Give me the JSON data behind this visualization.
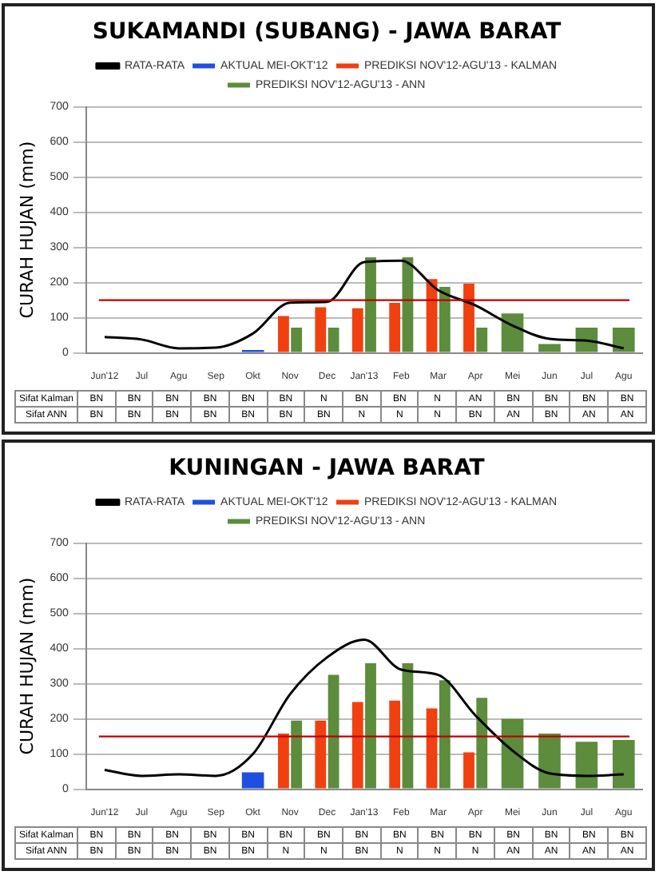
{
  "chart_data": [
    {
      "type": "bar",
      "title": "SUKAMANDI (SUBANG) - JAWA BARAT",
      "ylabel": "CURAH HUJAN (mm)",
      "categories": [
        "Jun'12",
        "Jul",
        "Agu",
        "Sep",
        "Okt",
        "Nov",
        "Dec",
        "Jan'13",
        "Feb",
        "Mar",
        "Apr",
        "Mei",
        "Jun",
        "Jul",
        "Agu"
      ],
      "series": [
        {
          "name": "AKTUAL MEI-OKT'12",
          "color": "#1f4fe0",
          "values": [
            null,
            null,
            null,
            null,
            8,
            null,
            null,
            null,
            null,
            null,
            null,
            null,
            null,
            null,
            null
          ]
        },
        {
          "name": "PREDIKSI NOV'12-AGU'13 - KALMAN",
          "color": "#f04010",
          "values": [
            null,
            null,
            null,
            null,
            null,
            105,
            130,
            127,
            142,
            210,
            197,
            null,
            null,
            null,
            null
          ]
        },
        {
          "name": "PREDIKSI NOV'12-AGU'13 - ANN",
          "color": "#5c8c3c",
          "values": [
            null,
            null,
            null,
            null,
            null,
            72,
            72,
            272,
            272,
            188,
            72,
            112,
            25,
            72,
            72
          ]
        },
        {
          "name": "RATA-RATA",
          "type": "line",
          "color": "#000000",
          "values": [
            45,
            38,
            13,
            15,
            55,
            143,
            145,
            258,
            262,
            178,
            135,
            78,
            40,
            35,
            13
          ]
        }
      ],
      "ylim": [
        0,
        700
      ],
      "yticks": [
        0,
        100,
        200,
        300,
        400,
        500,
        600,
        700
      ],
      "grid": "y",
      "legend": "top",
      "marker": "none",
      "line_style": "solid",
      "ref_lines": [
        {
          "axis": "y",
          "value": 150,
          "color": "#c00000"
        }
      ],
      "annotations": [
        "Sifat Kalman",
        "BN",
        "BN",
        "BN",
        "BN",
        "BN",
        "BN",
        "N",
        "BN",
        "BN",
        "N",
        "AN",
        "BN",
        "BN",
        "BN",
        "BN",
        "Sifat ANN",
        "BN",
        "BN",
        "BN",
        "BN",
        "BN",
        "BN",
        "BN",
        "N",
        "N",
        "N",
        "BN",
        "AN",
        "BN",
        "AN",
        "AN"
      ]
    },
    {
      "type": "bar",
      "title": "KUNINGAN - JAWA BARAT",
      "ylabel": "CURAH HUJAN (mm)",
      "categories": [
        "Jun'12",
        "Jul",
        "Agu",
        "Sep",
        "Okt",
        "Nov",
        "Dec",
        "Jan'13",
        "Feb",
        "Mar",
        "Apr",
        "Mei",
        "Jun",
        "Jul",
        "Agu"
      ],
      "series": [
        {
          "name": "AKTUAL MEI-OKT'12",
          "color": "#1f4fe0",
          "values": [
            null,
            null,
            null,
            null,
            48,
            null,
            null,
            null,
            null,
            null,
            null,
            null,
            null,
            null,
            null
          ]
        },
        {
          "name": "PREDIKSI NOV'12-AGU'13 - KALMAN",
          "color": "#f04010",
          "values": [
            null,
            null,
            null,
            null,
            null,
            158,
            195,
            248,
            252,
            230,
            105,
            null,
            null,
            null,
            null
          ]
        },
        {
          "name": "PREDIKSI NOV'12-AGU'13 - ANN",
          "color": "#5c8c3c",
          "values": [
            null,
            null,
            null,
            null,
            null,
            195,
            325,
            358,
            358,
            310,
            260,
            200,
            158,
            135,
            140
          ]
        },
        {
          "name": "RATA-RATA",
          "type": "line",
          "color": "#000000",
          "values": [
            55,
            38,
            42,
            38,
            100,
            270,
            375,
            425,
            340,
            325,
            210,
            110,
            45,
            38,
            42
          ]
        }
      ],
      "ylim": [
        0,
        700
      ],
      "yticks": [
        0,
        100,
        200,
        300,
        400,
        500,
        600,
        700
      ],
      "grid": "y",
      "legend": "top",
      "marker": "none",
      "line_style": "solid",
      "ref_lines": [
        {
          "axis": "y",
          "value": 150,
          "color": "#c00000"
        }
      ],
      "annotations": [
        "Sifat Kalman",
        "BN",
        "BN",
        "BN",
        "BN",
        "BN",
        "BN",
        "BN",
        "BN",
        "BN",
        "BN",
        "BN",
        "BN",
        "BN",
        "BN",
        "BN",
        "Sifat ANN",
        "BN",
        "BN",
        "BN",
        "BN",
        "BN",
        "N",
        "N",
        "BN",
        "N",
        "N",
        "N",
        "AN",
        "AN",
        "AN",
        "AN"
      ]
    }
  ]
}
